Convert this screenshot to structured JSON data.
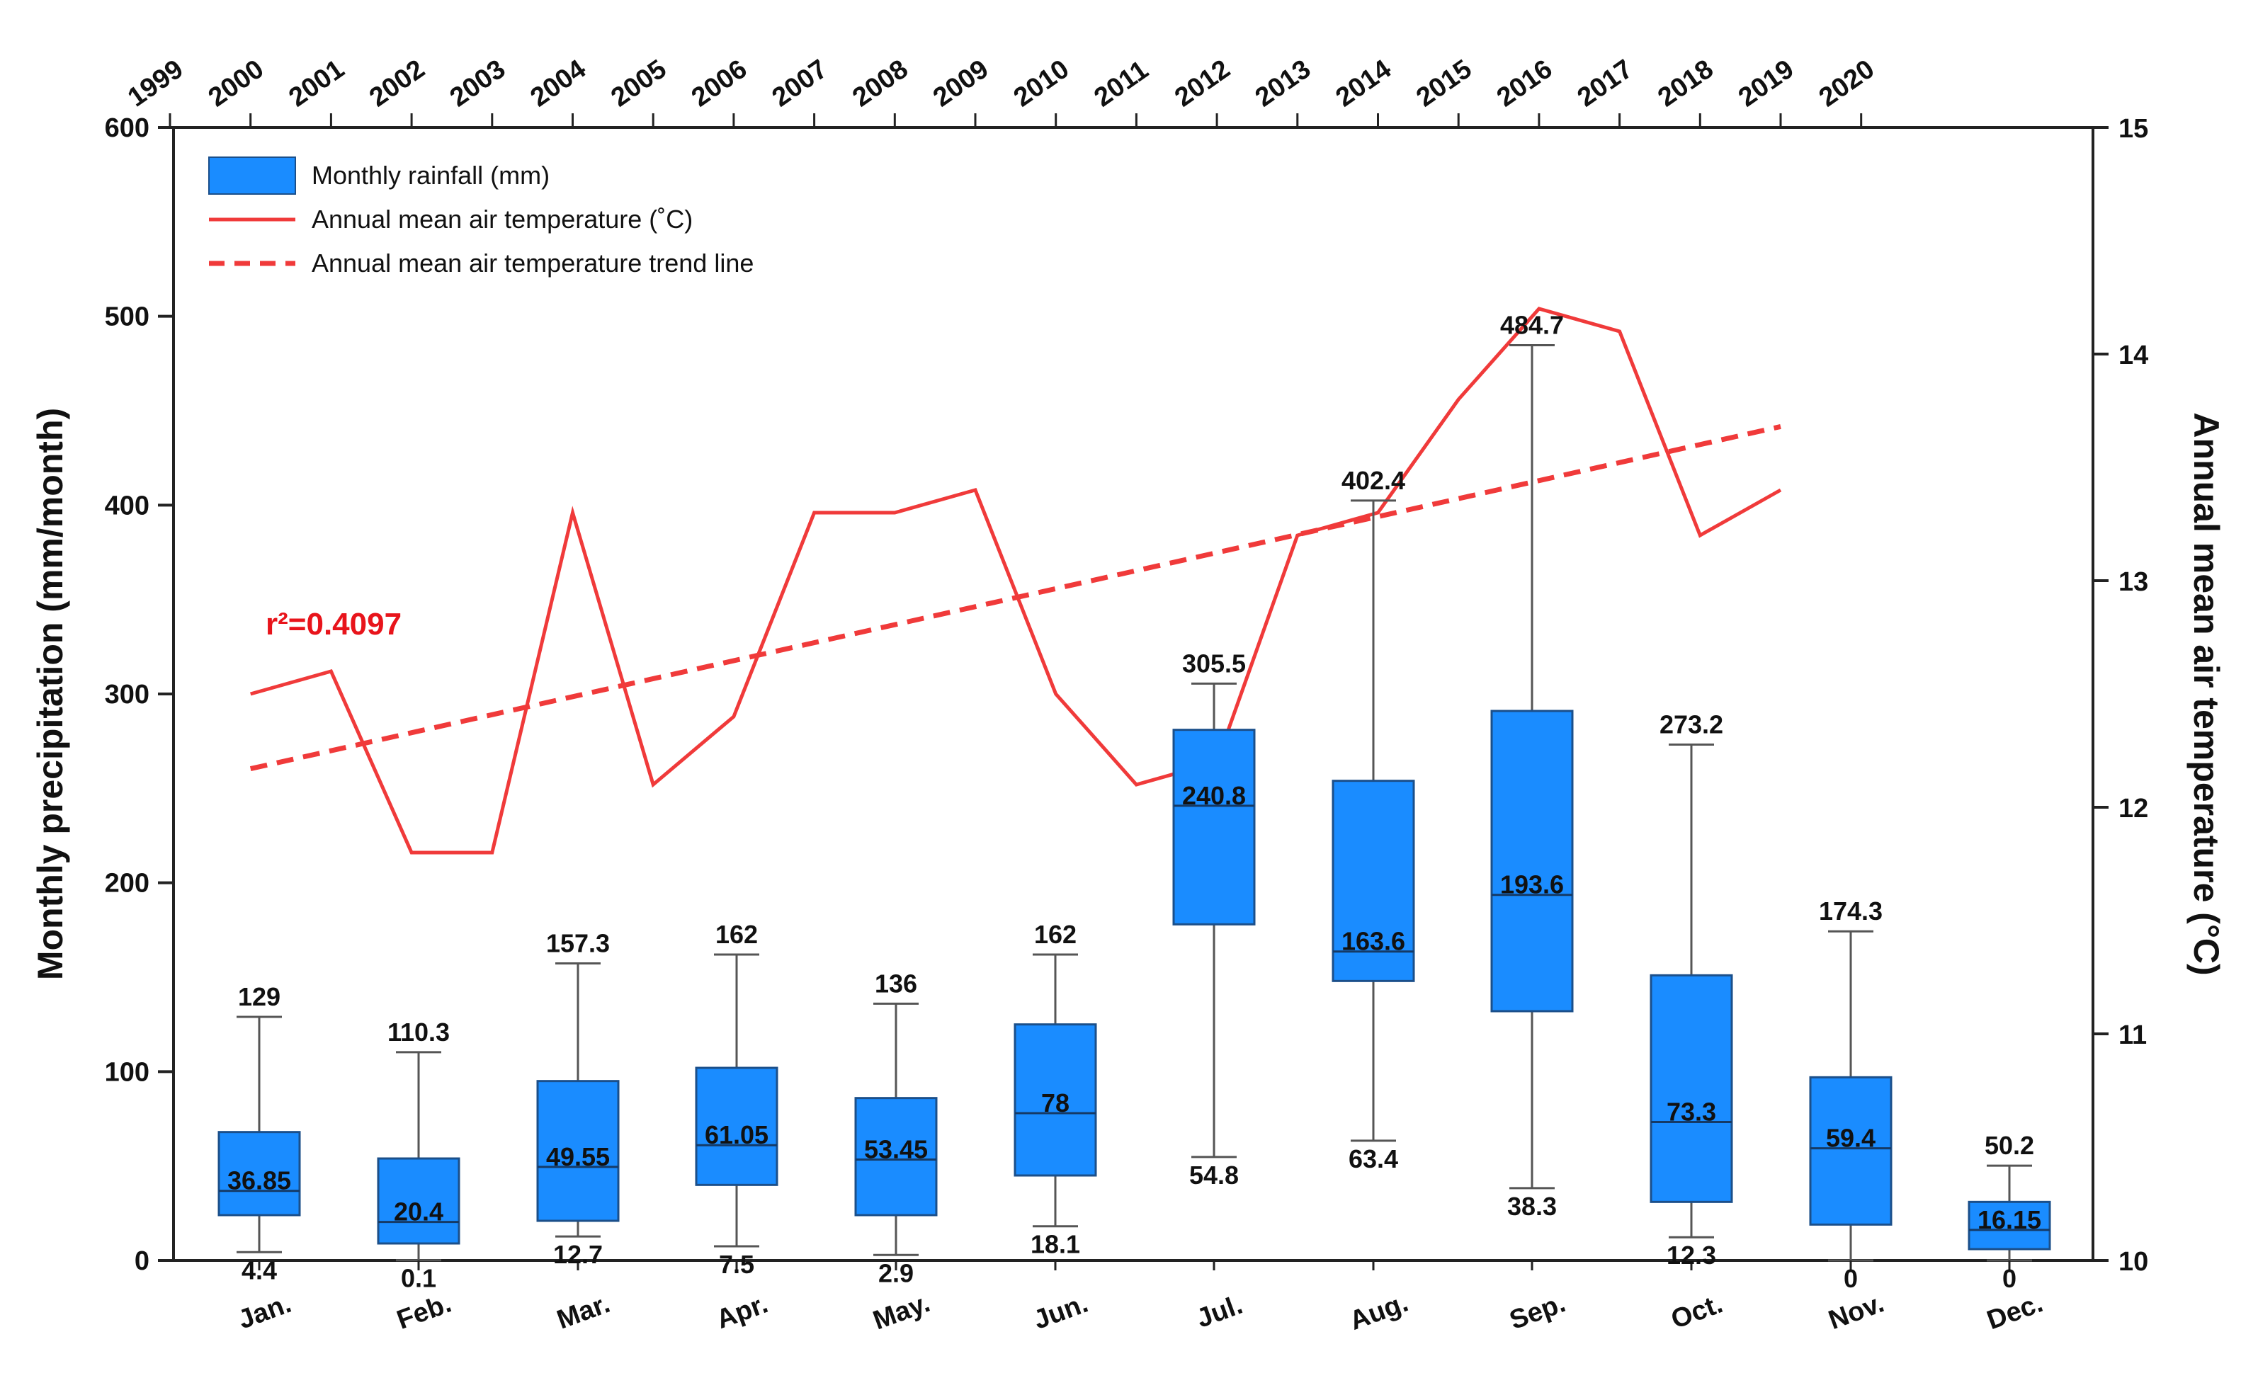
{
  "chart_data": {
    "type": "box+line",
    "left_axis": {
      "title": "Monthly precipitation (mm/month)",
      "ylim": [
        0,
        600
      ],
      "ticks": [
        "0",
        "100",
        "200",
        "300",
        "400",
        "500",
        "600"
      ]
    },
    "right_axis": {
      "title": "Annual mean air temperature (°C)",
      "ylim": [
        10,
        15
      ],
      "ticks": [
        "10",
        "11",
        "12",
        "13",
        "14",
        "15"
      ]
    },
    "months": [
      "Jan.",
      "Feb.",
      "Mar.",
      "Apr.",
      "May.",
      "Jun.",
      "Jul.",
      "Aug.",
      "Sep.",
      "Oct.",
      "Nov.",
      "Dec."
    ],
    "years": [
      "1999",
      "2000",
      "2001",
      "2002",
      "2003",
      "2004",
      "2005",
      "2006",
      "2007",
      "2008",
      "2009",
      "2010",
      "2011",
      "2012",
      "2013",
      "2014",
      "2015",
      "2016",
      "2017",
      "2018",
      "2019",
      "2020"
    ],
    "boxes": [
      {
        "month": "Jan.",
        "min": 4.4,
        "q1": 24,
        "median": 36.85,
        "q3": 68,
        "max": 129,
        "min_label": "4.4",
        "median_label": "36.85",
        "max_label": "129"
      },
      {
        "month": "Feb.",
        "min": 0.1,
        "q1": 9,
        "median": 20.4,
        "q3": 54,
        "max": 110.3,
        "min_label": "0.1",
        "median_label": "20.4",
        "max_label": "110.3"
      },
      {
        "month": "Mar.",
        "min": 12.7,
        "q1": 21,
        "median": 49.55,
        "q3": 95,
        "max": 157.3,
        "min_label": "12.7",
        "median_label": "49.55",
        "max_label": "157.3"
      },
      {
        "month": "Apr.",
        "min": 7.5,
        "q1": 40,
        "median": 61.05,
        "q3": 102,
        "max": 162,
        "min_label": "7.5",
        "median_label": "61.05",
        "max_label": "162"
      },
      {
        "month": "May.",
        "min": 2.9,
        "q1": 24,
        "median": 53.45,
        "q3": 86,
        "max": 136,
        "min_label": "2.9",
        "median_label": "53.45",
        "max_label": "136"
      },
      {
        "month": "Jun.",
        "min": 18.1,
        "q1": 45,
        "median": 78,
        "q3": 125,
        "max": 162,
        "min_label": "18.1",
        "median_label": "78",
        "max_label": "162"
      },
      {
        "month": "Jul.",
        "min": 54.8,
        "q1": 178,
        "median": 240.8,
        "q3": 281,
        "max": 305.5,
        "min_label": "54.8",
        "median_label": "240.8",
        "max_label": "305.5"
      },
      {
        "month": "Aug.",
        "min": 63.4,
        "q1": 148,
        "median": 163.6,
        "q3": 254,
        "max": 402.4,
        "min_label": "63.4",
        "median_label": "163.6",
        "max_label": "402.4"
      },
      {
        "month": "Sep.",
        "min": 38.3,
        "q1": 132,
        "median": 193.6,
        "q3": 291,
        "max": 484.7,
        "min_label": "38.3",
        "median_label": "193.6",
        "max_label": "484.7"
      },
      {
        "month": "Oct.",
        "min": 12.3,
        "q1": 31,
        "median": 73.3,
        "q3": 151,
        "max": 273.2,
        "min_label": "12.3",
        "median_label": "73.3",
        "max_label": "273.2"
      },
      {
        "month": "Nov.",
        "min": 0,
        "q1": 19,
        "median": 59.4,
        "q3": 97,
        "max": 174.3,
        "min_label": "0",
        "median_label": "59.4",
        "max_label": "174.3"
      },
      {
        "month": "Dec.",
        "min": 0,
        "q1": 6,
        "median": 16.15,
        "q3": 31,
        "max": 50.2,
        "min_label": "0",
        "median_label": "16.15",
        "max_label": "50.2"
      }
    ],
    "temperature": {
      "years": [
        2000,
        2001,
        2002,
        2003,
        2004,
        2005,
        2006,
        2007,
        2008,
        2009,
        2010,
        2011,
        2012,
        2013,
        2014,
        2015,
        2016,
        2017,
        2018,
        2019
      ],
      "values": [
        12.5,
        12.6,
        11.8,
        11.8,
        13.3,
        12.1,
        12.4,
        13.3,
        13.3,
        13.4,
        12.5,
        12.1,
        12.2,
        13.2,
        13.3,
        13.8,
        14.2,
        14.1,
        13.2,
        13.4
      ]
    },
    "trend": {
      "start_year": 2000,
      "start_value": 12.17,
      "end_year": 2019,
      "end_value": 13.68,
      "r2_label": "r²=0.4097"
    },
    "legend": {
      "items": [
        "Monthly rainfall (mm)",
        "Annual mean air temperature (˚C)",
        "Annual mean air temperature trend line"
      ],
      "position": "top-left"
    },
    "colors": {
      "box": "#1a8cff",
      "box_edge": "#1b4f8a",
      "temperature": "#f03a3a",
      "trend": "#f03a3a",
      "axis": "#222222",
      "whisker": "#555555"
    }
  }
}
